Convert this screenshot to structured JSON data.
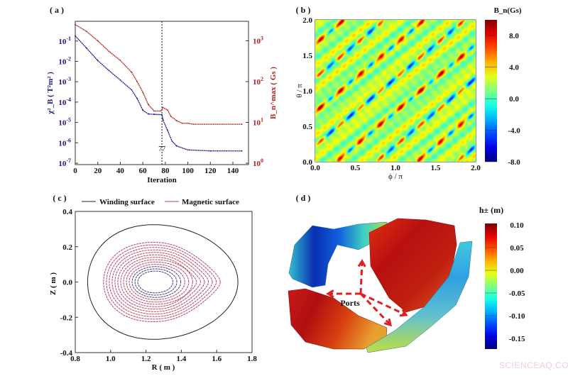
{
  "watermark": "SCIENCEAQ.COM",
  "chart_data": [
    {
      "panel": "( a )",
      "type": "line",
      "xlabel": "Iteration",
      "ylabel_left": "χ²_B ( T²m² )",
      "ylabel_right": "B_n^max ( Gs )",
      "xlim": [
        0,
        150
      ],
      "xticks": [
        "0",
        "20",
        "40",
        "60",
        "80",
        "100",
        "120",
        "140"
      ],
      "y_left_scale": "log",
      "y_left_ticks": [
        "10-1",
        "10-2",
        "10-3",
        "10-4",
        "10-5",
        "10-6",
        "10-7"
      ],
      "y_right_scale": "log",
      "y_right_ticks": [
        "100",
        "101",
        "102",
        "103"
      ],
      "annotation": {
        "x": 77,
        "label": "77"
      },
      "colors": {
        "left": "#1a1a80",
        "right": "#b22222"
      },
      "series": [
        {
          "axis": "left",
          "x": [
            0,
            10,
            20,
            30,
            40,
            50,
            55,
            60,
            65,
            70,
            77,
            78,
            82,
            86,
            90,
            100,
            120,
            148
          ],
          "y": [
            0.18,
            0.045,
            0.011,
            0.0035,
            0.0012,
            0.0004,
            0.00015,
            4e-05,
            2.6e-05,
            2.5e-05,
            2.4e-05,
            1.3e-05,
            4e-06,
            1.2e-06,
            7e-07,
            4.5e-07,
            4e-07,
            4e-07
          ]
        },
        {
          "axis": "right",
          "x": [
            0,
            10,
            20,
            30,
            40,
            50,
            55,
            60,
            65,
            70,
            76,
            78,
            82,
            85,
            90,
            95,
            100,
            105,
            148
          ],
          "y": [
            2500,
            1700,
            1000,
            550,
            330,
            170,
            100,
            55,
            27,
            19,
            19,
            23,
            20,
            14,
            11,
            9.5,
            9.5,
            9,
            9
          ]
        }
      ]
    },
    {
      "panel": "( b )",
      "type": "heatmap",
      "xlabel": "ϕ / π",
      "ylabel": "θ / π",
      "xlim": [
        0,
        2
      ],
      "ylim": [
        0,
        2
      ],
      "xticks": [
        "0.0",
        "0.5",
        "1.0",
        "1.5",
        "2.0"
      ],
      "yticks": [
        "0.0",
        "0.5",
        "1.0",
        "1.5",
        "2.0"
      ],
      "colorbar": {
        "label": "B_n(Gs)",
        "ticks": [
          "8.0",
          "4.0",
          "0.0",
          "-4.0",
          "-8.0"
        ],
        "range": [
          -8,
          10
        ],
        "colormap": "jet"
      }
    },
    {
      "panel": "( c )",
      "type": "line",
      "xlabel": "R ( m )",
      "ylabel": "Z ( m )",
      "xlim": [
        0.8,
        1.8
      ],
      "ylim": [
        -0.4,
        0.4
      ],
      "xticks": [
        "0.8",
        "1.0",
        "1.2",
        "1.4",
        "1.6",
        "1.8"
      ],
      "yticks": [
        "0.4",
        "0.2",
        "0.0",
        "-0.2",
        "-0.4"
      ],
      "legend": [
        "Winding surface",
        "Magnetic surface"
      ],
      "colors": {
        "winding": "#222222",
        "magnetic": "#c04060"
      },
      "winding_surface": {
        "R_min": 0.87,
        "R_max": 1.72,
        "Z_max": 0.325
      },
      "magnetic_surface_outer": {
        "R_min": 0.96,
        "R_max": 1.62,
        "Z_max": 0.225
      }
    },
    {
      "panel": "( d )",
      "type": "other",
      "annotation": "Ports",
      "colorbar": {
        "label": "h± (m)",
        "ticks": [
          "0.10",
          "0.05",
          "0.00",
          "-0.05",
          "-0.10",
          "-0.15"
        ],
        "colormap": "jet"
      }
    }
  ]
}
